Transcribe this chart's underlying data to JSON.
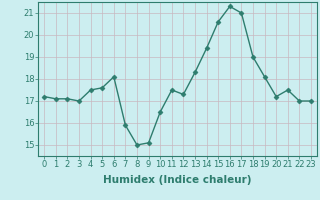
{
  "x": [
    0,
    1,
    2,
    3,
    4,
    5,
    6,
    7,
    8,
    9,
    10,
    11,
    12,
    13,
    14,
    15,
    16,
    17,
    18,
    19,
    20,
    21,
    22,
    23
  ],
  "y": [
    17.2,
    17.1,
    17.1,
    17.0,
    17.5,
    17.6,
    18.1,
    15.9,
    15.0,
    15.1,
    16.5,
    17.5,
    17.3,
    18.3,
    19.4,
    20.6,
    21.3,
    21.0,
    19.0,
    18.1,
    17.2,
    17.5,
    17.0,
    17.0
  ],
  "line_color": "#2e7d6e",
  "marker": "D",
  "bg_color": "#cceef0",
  "grid_color_h": "#c8b8c0",
  "grid_color_v": "#c8b8c0",
  "xlabel": "Humidex (Indice chaleur)",
  "ylim": [
    14.5,
    21.5
  ],
  "xlim": [
    -0.5,
    23.5
  ],
  "yticks": [
    15,
    16,
    17,
    18,
    19,
    20,
    21
  ],
  "xticks": [
    0,
    1,
    2,
    3,
    4,
    5,
    6,
    7,
    8,
    9,
    10,
    11,
    12,
    13,
    14,
    15,
    16,
    17,
    18,
    19,
    20,
    21,
    22,
    23
  ],
  "tick_fontsize": 6.0,
  "xlabel_fontsize": 7.5,
  "line_width": 1.0,
  "marker_size": 2.5
}
